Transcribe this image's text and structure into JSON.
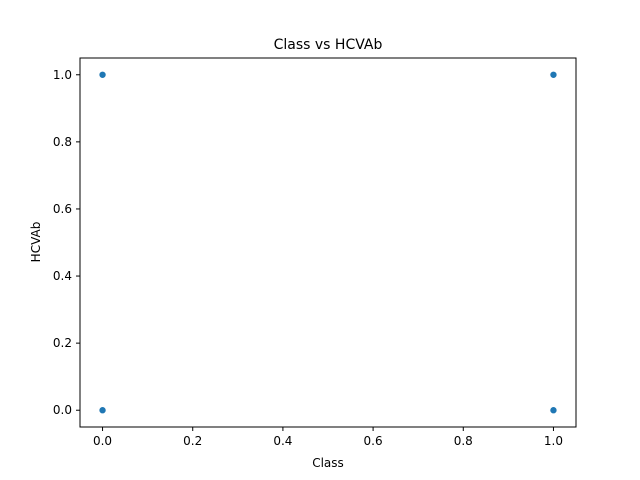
{
  "chart_data": {
    "type": "scatter",
    "title": "Class vs HCVAb",
    "xlabel": "Class",
    "ylabel": "HCVAb",
    "xlim": [
      -0.05,
      1.05
    ],
    "ylim": [
      -0.05,
      1.05
    ],
    "x_ticks": [
      "0.0",
      "0.2",
      "0.4",
      "0.6",
      "0.8",
      "1.0"
    ],
    "y_ticks": [
      "0.0",
      "0.2",
      "0.4",
      "0.6",
      "0.8",
      "1.0"
    ],
    "grid": false,
    "legend": "none",
    "marker_color": "#1f77b4",
    "points": [
      {
        "x": 0,
        "y": 1
      },
      {
        "x": 0,
        "y": 0
      },
      {
        "x": 1,
        "y": 1
      },
      {
        "x": 1,
        "y": 0
      }
    ]
  }
}
